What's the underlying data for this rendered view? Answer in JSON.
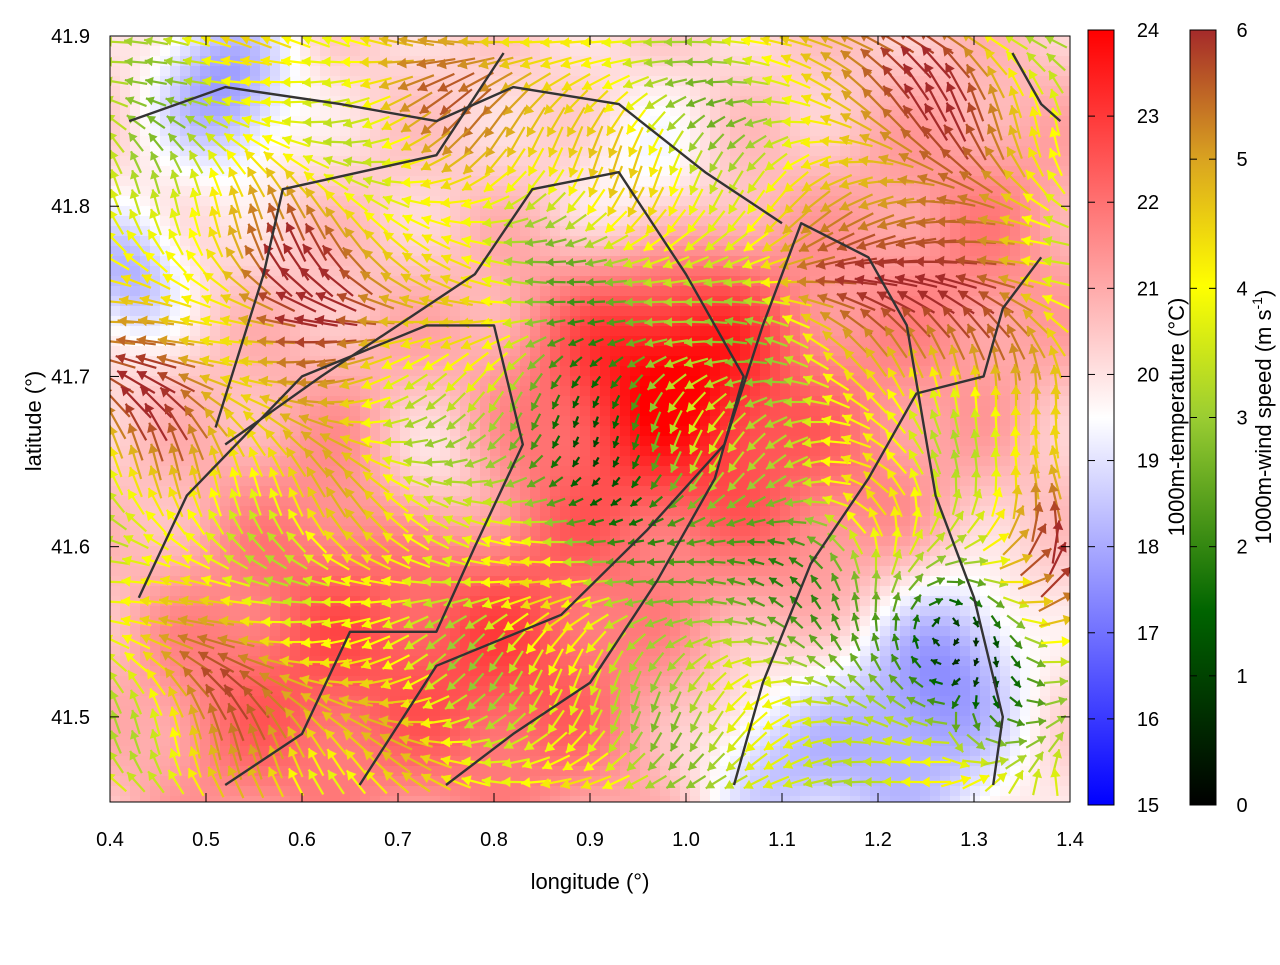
{
  "chart_data": {
    "type": "heatmap",
    "title": "",
    "xlabel": "longitude (°)",
    "ylabel": "latitude (°)",
    "xlim": [
      0.4,
      1.4
    ],
    "ylim": [
      41.45,
      41.9
    ],
    "x_ticks": [
      "0.4",
      "0.5",
      "0.6",
      "0.7",
      "0.8",
      "0.9",
      "1.0",
      "1.1",
      "1.2",
      "1.3",
      "1.4"
    ],
    "y_ticks": [
      "41.5",
      "41.6",
      "41.7",
      "41.8",
      "41.9"
    ],
    "grid": false,
    "overlays": [
      "wind-vectors",
      "terrain-contours"
    ],
    "colorbars": [
      {
        "label": "1000m-temperature (°C)",
        "range": [
          15,
          24
        ],
        "ticks": [
          "15",
          "16",
          "17",
          "18",
          "19",
          "20",
          "21",
          "22",
          "23",
          "24"
        ],
        "colors": [
          "#0000ff",
          "#ffffff",
          "#ff0000"
        ]
      },
      {
        "label_main": "1000m-wind speed (m s",
        "label_sup": "-1",
        "label_end": ")",
        "range": [
          0,
          6
        ],
        "ticks": [
          "0",
          "1",
          "2",
          "3",
          "4",
          "5",
          "6"
        ],
        "colors": [
          "#000000",
          "#006400",
          "#9acd32",
          "#ffff00",
          "#daa520",
          "#a52a2a"
        ]
      }
    ],
    "temperature_field": {
      "base": 20.3,
      "features": [
        {
          "lon": 0.52,
          "lat": 41.87,
          "dT": -2.6,
          "r": 0.05
        },
        {
          "lon": 0.42,
          "lat": 41.76,
          "dT": -2.2,
          "r": 0.04
        },
        {
          "lon": 0.96,
          "lat": 41.8,
          "dT": -1.8,
          "r": 0.06
        },
        {
          "lon": 0.74,
          "lat": 41.64,
          "dT": -1.6,
          "r": 0.05
        },
        {
          "lon": 1.22,
          "lat": 41.49,
          "dT": -2.4,
          "r": 0.08
        },
        {
          "lon": 1.28,
          "lat": 41.54,
          "dT": -1.6,
          "r": 0.05
        },
        {
          "lon": 1.08,
          "lat": 41.47,
          "dT": -1.5,
          "r": 0.05
        },
        {
          "lon": 0.98,
          "lat": 41.71,
          "dT": 3.6,
          "r": 0.09
        },
        {
          "lon": 0.7,
          "lat": 41.58,
          "dT": 1.6,
          "r": 0.14
        },
        {
          "lon": 1.15,
          "lat": 41.62,
          "dT": 1.4,
          "r": 0.1
        },
        {
          "lon": 1.3,
          "lat": 41.78,
          "dT": 1.3,
          "r": 0.1
        },
        {
          "lon": 0.55,
          "lat": 41.5,
          "dT": 1.2,
          "r": 0.1
        },
        {
          "lon": 0.85,
          "lat": 41.52,
          "dT": 1.4,
          "r": 0.1
        }
      ]
    },
    "wind_field": {
      "speed_base": 3.8,
      "speed_features": [
        {
          "lon": 0.9,
          "lat": 41.68,
          "dS": -2.4,
          "r": 0.07
        },
        {
          "lon": 1.28,
          "lat": 41.54,
          "dS": -2.8,
          "r": 0.06
        },
        {
          "lon": 1.05,
          "lat": 41.58,
          "dS": -1.5,
          "r": 0.08
        },
        {
          "lon": 1.1,
          "lat": 41.87,
          "dS": -1.3,
          "r": 0.06
        },
        {
          "lon": 0.42,
          "lat": 41.82,
          "dS": -1.2,
          "r": 0.04
        },
        {
          "lon": 1.25,
          "lat": 41.76,
          "dS": 2.2,
          "r": 0.07
        },
        {
          "lon": 0.62,
          "lat": 41.74,
          "dS": 2.0,
          "r": 0.07
        },
        {
          "lon": 0.45,
          "lat": 41.7,
          "dS": 1.6,
          "r": 0.06
        },
        {
          "lon": 1.38,
          "lat": 41.6,
          "dS": 2.0,
          "r": 0.05
        },
        {
          "lon": 0.55,
          "lat": 41.5,
          "dS": 1.4,
          "r": 0.07
        },
        {
          "lon": 1.2,
          "lat": 41.88,
          "dS": 2.0,
          "r": 0.08
        },
        {
          "lon": 0.8,
          "lat": 41.88,
          "dS": 1.5,
          "r": 0.06
        }
      ]
    },
    "contours": [
      [
        [
          0.43,
          41.57
        ],
        [
          0.48,
          41.63
        ],
        [
          0.6,
          41.7
        ],
        [
          0.73,
          41.73
        ],
        [
          0.8,
          41.73
        ],
        [
          0.83,
          41.66
        ],
        [
          0.78,
          41.6
        ],
        [
          0.74,
          41.55
        ],
        [
          0.65,
          41.55
        ],
        [
          0.6,
          41.49
        ],
        [
          0.52,
          41.46
        ]
      ],
      [
        [
          0.52,
          41.66
        ],
        [
          0.62,
          41.7
        ],
        [
          0.78,
          41.76
        ],
        [
          0.84,
          41.81
        ],
        [
          0.93,
          41.82
        ],
        [
          1.0,
          41.76
        ],
        [
          1.06,
          41.7
        ],
        [
          1.03,
          41.64
        ],
        [
          0.97,
          41.58
        ],
        [
          0.9,
          41.52
        ],
        [
          0.82,
          41.49
        ],
        [
          0.75,
          41.46
        ]
      ],
      [
        [
          0.66,
          41.46
        ],
        [
          0.74,
          41.53
        ],
        [
          0.87,
          41.56
        ],
        [
          0.96,
          41.61
        ],
        [
          1.04,
          41.66
        ],
        [
          1.08,
          41.73
        ],
        [
          1.12,
          41.79
        ],
        [
          1.19,
          41.77
        ],
        [
          1.23,
          41.73
        ],
        [
          1.26,
          41.63
        ],
        [
          1.3,
          41.57
        ],
        [
          1.33,
          41.5
        ],
        [
          1.32,
          41.46
        ]
      ],
      [
        [
          0.42,
          41.85
        ],
        [
          0.52,
          41.87
        ],
        [
          0.64,
          41.86
        ],
        [
          0.74,
          41.85
        ],
        [
          0.82,
          41.87
        ],
        [
          0.93,
          41.86
        ],
        [
          1.02,
          41.82
        ],
        [
          1.1,
          41.79
        ]
      ],
      [
        [
          0.51,
          41.67
        ],
        [
          0.56,
          41.76
        ],
        [
          0.58,
          41.81
        ],
        [
          0.66,
          41.82
        ],
        [
          0.74,
          41.83
        ],
        [
          0.81,
          41.89
        ]
      ],
      [
        [
          1.05,
          41.46
        ],
        [
          1.08,
          41.52
        ],
        [
          1.13,
          41.59
        ],
        [
          1.19,
          41.64
        ],
        [
          1.24,
          41.69
        ],
        [
          1.31,
          41.7
        ],
        [
          1.33,
          41.74
        ],
        [
          1.37,
          41.77
        ]
      ],
      [
        [
          1.34,
          41.89
        ],
        [
          1.37,
          41.86
        ],
        [
          1.39,
          41.85
        ]
      ]
    ]
  }
}
